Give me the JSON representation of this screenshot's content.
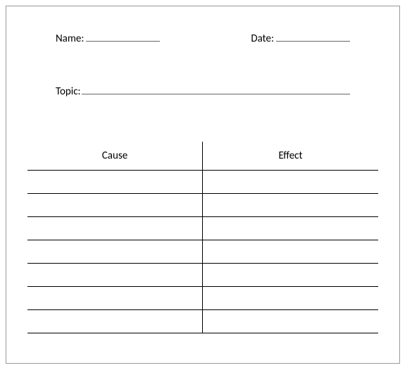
{
  "header": {
    "name_label": "Name:",
    "name_value": "",
    "date_label": "Date:",
    "date_value": ""
  },
  "topic": {
    "label": "Topic:",
    "value": ""
  },
  "table": {
    "columns": [
      "Cause",
      "Effect"
    ],
    "row_count": 7,
    "border_color": "#000000",
    "background_color": "#ffffff",
    "title_fontsize": 15
  }
}
